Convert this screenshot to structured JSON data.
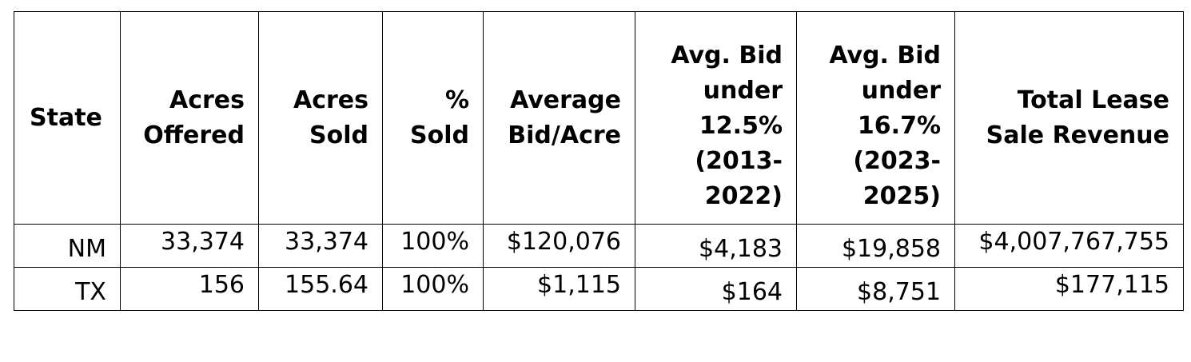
{
  "table": {
    "headers": [
      [
        "State"
      ],
      [
        "Acres",
        "Offered"
      ],
      [
        "Acres",
        "Sold"
      ],
      [
        "%",
        "Sold"
      ],
      [
        "Average",
        "Bid/Acre"
      ],
      [
        "Avg. Bid",
        "under",
        "12.5%",
        "(2013-",
        "2022)"
      ],
      [
        "Avg. Bid",
        "under",
        "16.7%",
        "(2023-",
        "2025)"
      ],
      [
        "Total Lease",
        "Sale Revenue"
      ]
    ],
    "rows": [
      [
        "NM",
        "33,374",
        "33,374",
        "100%",
        "$120,076",
        "$4,183",
        "$19,858",
        "$4,007,767,755"
      ],
      [
        "TX",
        "156",
        "155.64",
        "100%",
        "$1,115",
        "$164",
        "$8,751",
        "$177,115"
      ]
    ]
  }
}
